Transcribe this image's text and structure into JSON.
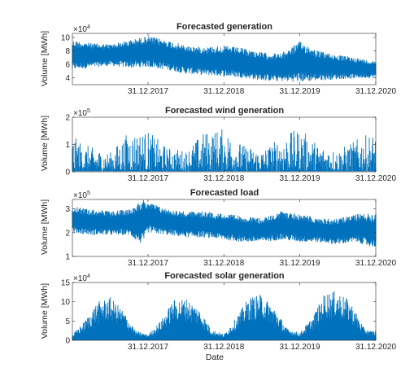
{
  "chart_data": [
    {
      "type": "line",
      "title": "Forecasted generation",
      "ylabel": "Volume [MWh]",
      "xlabel": "",
      "exponent": "×10",
      "exponent_power": "4",
      "ylim": [
        3,
        10.6
      ],
      "yticks": [
        "4",
        "6",
        "8",
        "10"
      ],
      "ytick_values": [
        4,
        6,
        8,
        10
      ],
      "xticks": [
        "31.12.2017",
        "31.12.2018",
        "31.12.2019",
        "31.12.2020"
      ],
      "x_range": [
        "2017-01-01",
        "2020-12-31"
      ],
      "series_color": "#0072BD",
      "envelope": {
        "months": [
          "2017-01",
          "2017-04",
          "2017-07",
          "2017-10",
          "2018-01",
          "2018-04",
          "2018-07",
          "2018-10",
          "2019-01",
          "2019-04",
          "2019-07",
          "2019-10",
          "2020-01",
          "2020-04",
          "2020-07",
          "2020-10",
          "2020-12"
        ],
        "low": [
          5.2,
          5.5,
          5.8,
          5.5,
          5.6,
          5.2,
          4.6,
          4.4,
          4.2,
          4.0,
          3.6,
          3.5,
          3.4,
          3.6,
          3.8,
          3.9,
          4.0
        ],
        "high": [
          9.6,
          9.2,
          9.0,
          9.6,
          10.2,
          9.6,
          8.8,
          8.6,
          8.8,
          8.4,
          7.8,
          7.6,
          9.4,
          8.0,
          7.4,
          7.0,
          6.6
        ]
      }
    },
    {
      "type": "line",
      "title": "Forecasted wind generation",
      "ylabel": "Volume [MWh]",
      "xlabel": "",
      "exponent": "×10",
      "exponent_power": "5",
      "ylim": [
        0,
        2
      ],
      "yticks": [
        "0",
        "1",
        "2"
      ],
      "ytick_values": [
        0,
        1,
        2
      ],
      "xticks": [
        "31.12.2017",
        "31.12.2018",
        "31.12.2019",
        "31.12.2020"
      ],
      "x_range": [
        "2017-01-01",
        "2020-12-31"
      ],
      "series_color": "#0072BD",
      "envelope": {
        "months": [
          "2017-01",
          "2017-04",
          "2017-07",
          "2017-10",
          "2018-01",
          "2018-04",
          "2018-07",
          "2018-10",
          "2019-01",
          "2019-04",
          "2019-07",
          "2019-10",
          "2020-01",
          "2020-04",
          "2020-07",
          "2020-10",
          "2020-12"
        ],
        "low": [
          0.02,
          0.02,
          0.02,
          0.02,
          0.02,
          0.02,
          0.02,
          0.02,
          0.02,
          0.02,
          0.02,
          0.02,
          0.02,
          0.02,
          0.02,
          0.02,
          0.02
        ],
        "high": [
          1.3,
          0.9,
          0.7,
          1.5,
          1.5,
          0.9,
          0.8,
          1.5,
          1.6,
          1.0,
          0.8,
          1.3,
          1.6,
          1.0,
          0.8,
          1.2,
          1.4
        ]
      }
    },
    {
      "type": "line",
      "title": "Forecasted load",
      "ylabel": "Volume [MWh]",
      "xlabel": "",
      "exponent": "×10",
      "exponent_power": "5",
      "ylim": [
        1,
        3.4
      ],
      "yticks": [
        "1",
        "2",
        "3"
      ],
      "ytick_values": [
        1,
        2,
        3
      ],
      "xticks": [
        "31.12.2017",
        "31.12.2018",
        "31.12.2019",
        "31.12.2020"
      ],
      "x_range": [
        "2017-01-01",
        "2020-12-31"
      ],
      "series_color": "#0072BD",
      "envelope": {
        "months": [
          "2017-01",
          "2017-04",
          "2017-07",
          "2017-10",
          "2017-12",
          "2018-01",
          "2018-04",
          "2018-07",
          "2018-10",
          "2019-01",
          "2019-04",
          "2019-07",
          "2019-10",
          "2020-01",
          "2020-04",
          "2020-07",
          "2020-10",
          "2020-12"
        ],
        "low": [
          2.0,
          1.9,
          1.9,
          1.9,
          1.5,
          2.0,
          1.9,
          1.8,
          1.8,
          1.7,
          1.6,
          1.6,
          1.7,
          1.6,
          1.6,
          1.5,
          1.6,
          1.4
        ],
        "high": [
          3.1,
          3.0,
          2.9,
          3.0,
          3.4,
          3.3,
          3.0,
          2.9,
          2.9,
          2.8,
          2.7,
          2.6,
          2.9,
          2.8,
          2.6,
          2.6,
          2.8,
          2.8
        ]
      }
    },
    {
      "type": "line",
      "title": "Forecasted solar generation",
      "ylabel": "Volume [MWh]",
      "xlabel": "Date",
      "exponent": "×10",
      "exponent_power": "4",
      "ylim": [
        0,
        15
      ],
      "yticks": [
        "0",
        "5",
        "10",
        "15"
      ],
      "ytick_values": [
        0,
        5,
        10,
        15
      ],
      "xticks": [
        "31.12.2017",
        "31.12.2018",
        "31.12.2019",
        "31.12.2020"
      ],
      "x_range": [
        "2017-01-01",
        "2020-12-31"
      ],
      "series_color": "#0072BD",
      "envelope": {
        "months": [
          "2017-01",
          "2017-03",
          "2017-05",
          "2017-07",
          "2017-09",
          "2017-11",
          "2018-01",
          "2018-03",
          "2018-05",
          "2018-07",
          "2018-09",
          "2018-11",
          "2019-01",
          "2019-03",
          "2019-05",
          "2019-07",
          "2019-09",
          "2019-11",
          "2020-01",
          "2020-03",
          "2020-05",
          "2020-07",
          "2020-09",
          "2020-11",
          "2020-12"
        ],
        "low": [
          0,
          0,
          0,
          0,
          0,
          0,
          0,
          0,
          0,
          0,
          0,
          0,
          0,
          0,
          0,
          0,
          0,
          0,
          0,
          0,
          0,
          0,
          0,
          0,
          0
        ],
        "high": [
          1.5,
          5.0,
          10.0,
          11.2,
          8.0,
          2.5,
          1.5,
          5.0,
          10.5,
          11.0,
          8.5,
          2.8,
          1.6,
          6.0,
          11.2,
          12.0,
          8.5,
          3.0,
          2.0,
          6.0,
          12.5,
          12.8,
          10.0,
          3.5,
          2.5
        ]
      }
    }
  ]
}
